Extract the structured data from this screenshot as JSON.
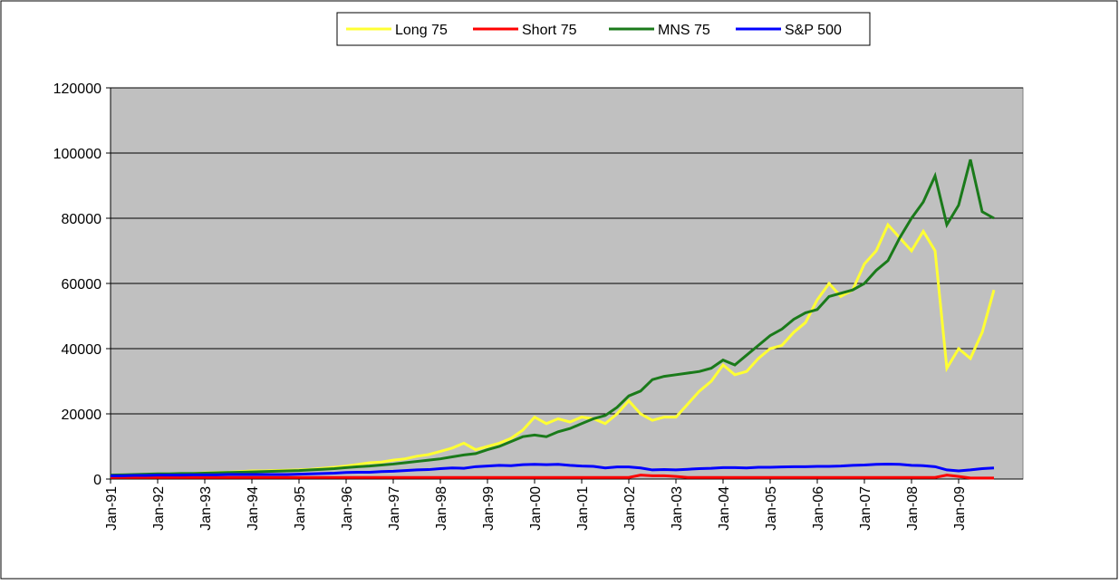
{
  "chart_data": {
    "type": "line",
    "categories": [
      "Jan-91",
      null,
      null,
      null,
      "Jan-92",
      null,
      null,
      null,
      "Jan-93",
      null,
      null,
      null,
      "Jan-94",
      null,
      null,
      null,
      "Jan-95",
      null,
      null,
      null,
      "Jan-96",
      null,
      null,
      null,
      "Jan-97",
      null,
      null,
      null,
      "Jan-98",
      null,
      null,
      null,
      "Jan-99",
      null,
      null,
      null,
      "Jan-00",
      null,
      null,
      null,
      "Jan-01",
      null,
      null,
      null,
      "Jan-02",
      null,
      null,
      null,
      "Jan-03",
      null,
      null,
      null,
      "Jan-04",
      null,
      null,
      null,
      "Jan-05",
      null,
      null,
      null,
      "Jan-06",
      null,
      null,
      null,
      "Jan-07",
      null,
      null,
      null,
      "Jan-08",
      null,
      null,
      null,
      "Jan-09",
      null,
      null,
      null
    ],
    "series": [
      {
        "name": "Long 75",
        "color": "#ffff33",
        "values": [
          1000,
          1100,
          1200,
          1300,
          1400,
          1500,
          1600,
          1700,
          1900,
          2000,
          2100,
          2300,
          2500,
          2500,
          2600,
          2700,
          2800,
          3000,
          3300,
          3600,
          4000,
          4500,
          5000,
          5200,
          5800,
          6200,
          7000,
          7500,
          8500,
          9500,
          11000,
          9000,
          10000,
          11000,
          12500,
          15000,
          19000,
          17000,
          18500,
          17500,
          19000,
          18500,
          17000,
          20000,
          24000,
          20000,
          18000,
          19000,
          19000,
          23000,
          27000,
          30000,
          35000,
          32000,
          33000,
          37000,
          40000,
          41000,
          45000,
          48000,
          55000,
          60000,
          56000,
          58000,
          66000,
          70000,
          78000,
          74000,
          70000,
          76000,
          70000,
          34000,
          40000,
          37000,
          45000,
          58000
        ]
      },
      {
        "name": "Short 75",
        "color": "#ff0000",
        "values": [
          500,
          500,
          500,
          500,
          500,
          500,
          500,
          500,
          500,
          500,
          500,
          500,
          500,
          500,
          500,
          500,
          500,
          500,
          500,
          500,
          500,
          500,
          500,
          500,
          500,
          500,
          500,
          500,
          500,
          500,
          500,
          500,
          500,
          500,
          500,
          500,
          500,
          500,
          500,
          500,
          500,
          500,
          500,
          500,
          500,
          1200,
          1000,
          1000,
          800,
          500,
          500,
          500,
          500,
          500,
          500,
          500,
          500,
          500,
          500,
          500,
          500,
          500,
          500,
          500,
          500,
          500,
          500,
          500,
          500,
          500,
          500,
          1200,
          800,
          300,
          300,
          300
        ]
      },
      {
        "name": "MNS 75",
        "color": "#1a7a1a",
        "values": [
          1200,
          1300,
          1400,
          1500,
          1600,
          1600,
          1700,
          1700,
          1800,
          1900,
          2000,
          2100,
          2200,
          2300,
          2400,
          2500,
          2600,
          2800,
          3000,
          3200,
          3500,
          3800,
          4000,
          4300,
          4600,
          5000,
          5400,
          5800,
          6200,
          6800,
          7400,
          7800,
          9000,
          10000,
          11500,
          13000,
          13500,
          13000,
          14500,
          15500,
          17000,
          18500,
          19500,
          22000,
          25500,
          27000,
          30500,
          31500,
          32000,
          32500,
          33000,
          34000,
          36500,
          35000,
          38000,
          41000,
          44000,
          46000,
          49000,
          51000,
          52000,
          56000,
          57000,
          58000,
          60000,
          64000,
          67000,
          74000,
          80000,
          85000,
          93000,
          78000,
          84000,
          98000,
          82000,
          80000
        ]
      },
      {
        "name": "S&P 500",
        "color": "#0000ff",
        "values": [
          1000,
          1000,
          1100,
          1100,
          1200,
          1200,
          1200,
          1300,
          1300,
          1300,
          1400,
          1400,
          1400,
          1400,
          1400,
          1400,
          1500,
          1600,
          1700,
          1800,
          2000,
          2100,
          2100,
          2300,
          2400,
          2600,
          2800,
          2900,
          3200,
          3400,
          3300,
          3800,
          4000,
          4200,
          4100,
          4400,
          4500,
          4400,
          4500,
          4200,
          4000,
          3900,
          3400,
          3700,
          3700,
          3400,
          2800,
          2900,
          2800,
          3000,
          3200,
          3300,
          3500,
          3500,
          3400,
          3600,
          3600,
          3700,
          3800,
          3800,
          3900,
          3900,
          4000,
          4200,
          4300,
          4500,
          4600,
          4500,
          4200,
          4100,
          3800,
          2800,
          2500,
          2800,
          3200,
          3400
        ]
      }
    ],
    "ylim": [
      0,
      120000
    ],
    "yticks": [
      0,
      20000,
      40000,
      60000,
      80000,
      100000,
      120000
    ],
    "grid": true,
    "legend": "top"
  }
}
